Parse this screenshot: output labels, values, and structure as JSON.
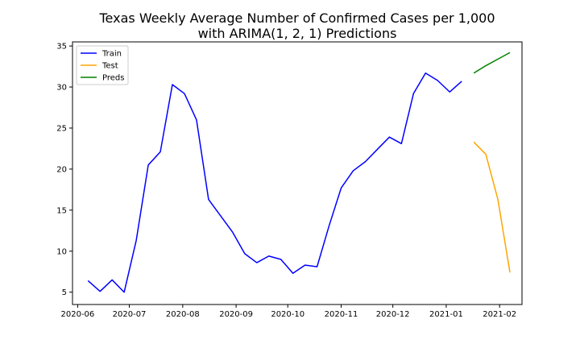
{
  "chart_data": {
    "type": "line",
    "title": "Texas Weekly Average Number of Confirmed Cases per 1,000\nwith ARIMA(1, 2, 1) Predictions",
    "xlabel": "",
    "ylabel": "",
    "xlim": [
      "2020-05-29",
      "2021-02-14"
    ],
    "ylim": [
      3.5,
      35.5
    ],
    "yticks": [
      5,
      10,
      15,
      20,
      25,
      30,
      35
    ],
    "xticks": [
      "2020-06",
      "2020-07",
      "2020-08",
      "2020-09",
      "2020-10",
      "2020-11",
      "2020-12",
      "2021-01",
      "2021-02"
    ],
    "grid": false,
    "legend_position": "upper left",
    "series": [
      {
        "name": "Train",
        "color": "#0000ff",
        "points": [
          {
            "x": "2020-06-07",
            "y": 6.4
          },
          {
            "x": "2020-06-14",
            "y": 5.1
          },
          {
            "x": "2020-06-21",
            "y": 6.5
          },
          {
            "x": "2020-06-28",
            "y": 5.0
          },
          {
            "x": "2020-07-05",
            "y": 11.3
          },
          {
            "x": "2020-07-12",
            "y": 20.5
          },
          {
            "x": "2020-07-19",
            "y": 22.1
          },
          {
            "x": "2020-07-26",
            "y": 30.3
          },
          {
            "x": "2020-08-02",
            "y": 29.2
          },
          {
            "x": "2020-08-09",
            "y": 26.0
          },
          {
            "x": "2020-08-16",
            "y": 16.3
          },
          {
            "x": "2020-08-23",
            "y": 14.3
          },
          {
            "x": "2020-08-30",
            "y": 12.3
          },
          {
            "x": "2020-09-06",
            "y": 9.7
          },
          {
            "x": "2020-09-13",
            "y": 8.6
          },
          {
            "x": "2020-09-20",
            "y": 9.4
          },
          {
            "x": "2020-09-27",
            "y": 9.0
          },
          {
            "x": "2020-10-04",
            "y": 7.3
          },
          {
            "x": "2020-10-11",
            "y": 8.3
          },
          {
            "x": "2020-10-18",
            "y": 8.1
          },
          {
            "x": "2020-10-25",
            "y": 13.1
          },
          {
            "x": "2020-11-01",
            "y": 17.7
          },
          {
            "x": "2020-11-08",
            "y": 19.8
          },
          {
            "x": "2020-11-15",
            "y": 20.9
          },
          {
            "x": "2020-11-22",
            "y": 22.4
          },
          {
            "x": "2020-11-29",
            "y": 23.9
          },
          {
            "x": "2020-12-06",
            "y": 23.1
          },
          {
            "x": "2020-12-13",
            "y": 29.2
          },
          {
            "x": "2020-12-20",
            "y": 31.7
          },
          {
            "x": "2020-12-27",
            "y": 30.8
          },
          {
            "x": "2021-01-03",
            "y": 29.4
          },
          {
            "x": "2021-01-10",
            "y": 30.7
          }
        ]
      },
      {
        "name": "Test",
        "color": "#ffa500",
        "points": [
          {
            "x": "2021-01-17",
            "y": 23.3
          },
          {
            "x": "2021-01-24",
            "y": 21.8
          },
          {
            "x": "2021-01-31",
            "y": 16.3
          },
          {
            "x": "2021-02-07",
            "y": 7.4
          }
        ]
      },
      {
        "name": "Preds",
        "color": "#008000",
        "points": [
          {
            "x": "2021-01-17",
            "y": 31.7
          },
          {
            "x": "2021-01-24",
            "y": 32.6
          },
          {
            "x": "2021-01-31",
            "y": 33.4
          },
          {
            "x": "2021-02-07",
            "y": 34.2
          }
        ]
      }
    ]
  }
}
